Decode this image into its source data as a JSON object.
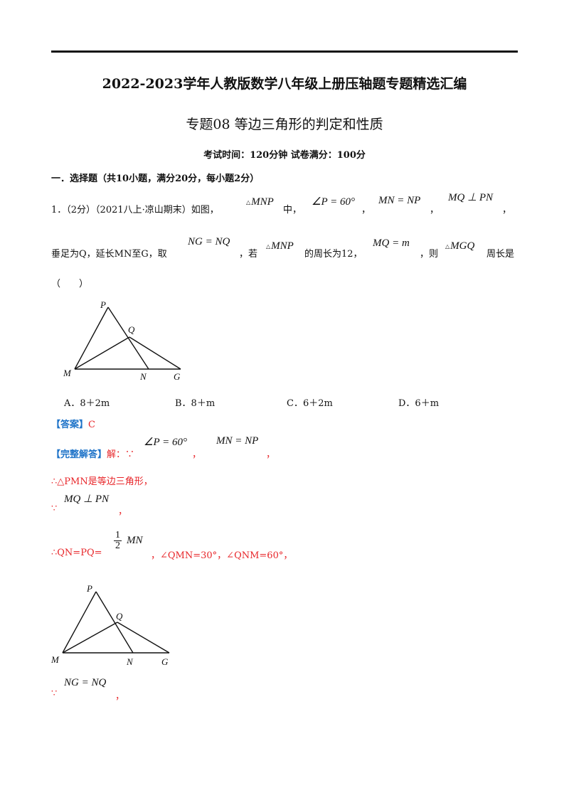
{
  "header": {
    "title": "2022-2023学年人教版数学八年级上册压轴题专题精选汇编",
    "subtitle": "专题08  等边三角形的判定和性质",
    "exam_info": "考试时间：120分钟  试卷满分：100分"
  },
  "section1": {
    "heading": "一．选择题（共10小题，满分20分，每小题2分）"
  },
  "question1": {
    "num": "1．（2分）（2021八上·凉山期末）如图，",
    "tri_symbol": "△",
    "m_mnp": "MNP",
    "t_zhong": "中，",
    "m_angle": "∠P = 60°",
    "comma": "，",
    "m_mn_np": "MN = NP",
    "m_mq_perp": "MQ ⊥ PN",
    "t_foot": "垂足为Q，延长MN至G，取",
    "m_ng_nq": "NG = NQ",
    "t_ruo": "，若",
    "t_perimeter": "的周长为12，",
    "m_mq_m": "MQ = m",
    "t_ze": "，则",
    "m_mgq": "MGQ",
    "t_zhouchang": "周长是",
    "t_paren": "（　　）",
    "figure_labels": {
      "P": "P",
      "Q": "Q",
      "M": "M",
      "N": "N",
      "G": "G"
    },
    "choices": [
      "A．8＋2m",
      "B．8＋m",
      "C．6＋2m",
      "D．6＋m"
    ]
  },
  "answer": {
    "label": "【答案】",
    "value": "C"
  },
  "solution": {
    "label": "【完整解答】",
    "t_jie": "解：∵",
    "m_angle": "∠P = 60°",
    "comma": "，",
    "m_mn_np": "MN = NP",
    "line2": "∴△PMN是等边三角形，",
    "because": "∵",
    "m_mq_perp": "MQ ⊥ PN",
    "line4_prefix": "∴QN=PQ=",
    "frac_num": "1",
    "frac_den": "2",
    "m_mn": "MN",
    "line4_suffix": "，∠QMN=30°，∠QNM=60°，",
    "m_ng_nq": "NG = NQ"
  },
  "colors": {
    "answer_red": "#e8262a",
    "label_blue": "#1e73c8"
  }
}
